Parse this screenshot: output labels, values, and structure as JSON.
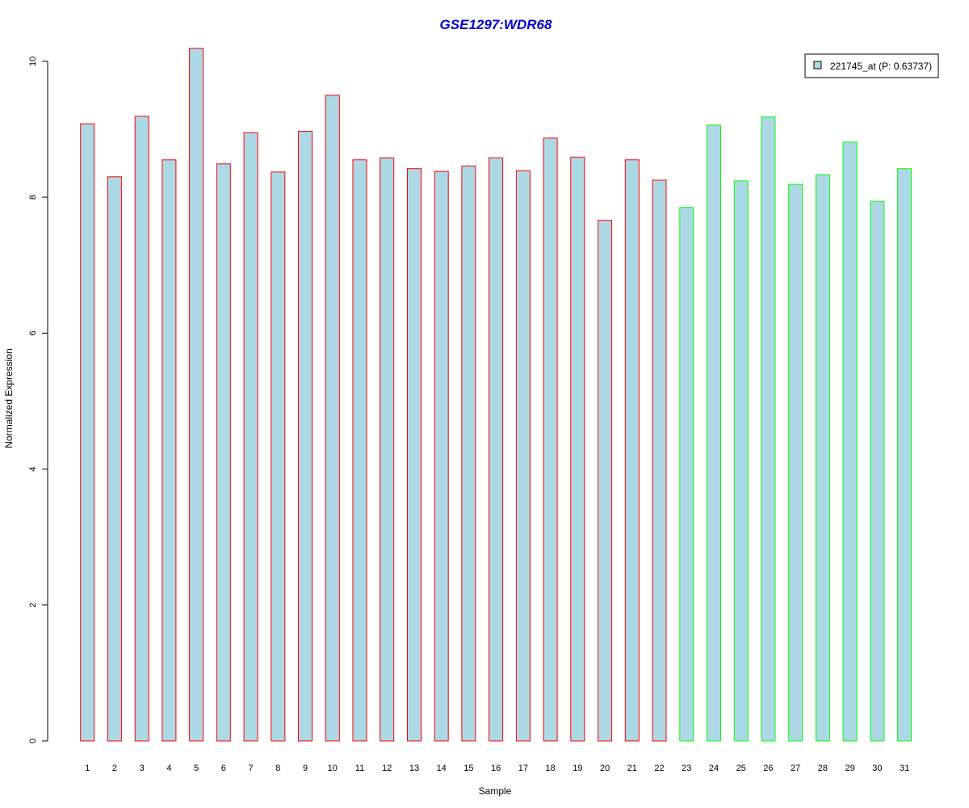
{
  "chart_data": {
    "type": "bar",
    "title": "GSE1297:WDR68",
    "xlabel": "Sample",
    "ylabel": "Normalized Expression",
    "ylim": [
      0,
      10.2
    ],
    "yticks": [
      0,
      2,
      4,
      6,
      8,
      10
    ],
    "grid": false,
    "legend_position": "top-right",
    "categories": [
      "1",
      "2",
      "3",
      "4",
      "5",
      "6",
      "7",
      "8",
      "9",
      "10",
      "11",
      "12",
      "13",
      "14",
      "15",
      "16",
      "17",
      "18",
      "19",
      "20",
      "21",
      "22",
      "23",
      "24",
      "25",
      "26",
      "27",
      "28",
      "29",
      "30",
      "31"
    ],
    "series": [
      {
        "name": "221745_at (P: 0.63737)",
        "values": [
          9.08,
          8.3,
          9.19,
          8.55,
          10.19,
          8.49,
          8.95,
          8.37,
          8.97,
          9.5,
          8.55,
          8.58,
          8.42,
          8.38,
          8.46,
          8.58,
          8.39,
          8.87,
          8.59,
          7.66,
          8.55,
          8.25,
          7.85,
          9.06,
          8.24,
          9.18,
          8.19,
          8.33,
          8.81,
          7.94,
          8.42
        ],
        "groups": [
          "red",
          "red",
          "red",
          "red",
          "red",
          "red",
          "red",
          "red",
          "red",
          "red",
          "red",
          "red",
          "red",
          "red",
          "red",
          "red",
          "red",
          "red",
          "red",
          "red",
          "red",
          "red",
          "green",
          "green",
          "green",
          "green",
          "green",
          "green",
          "green",
          "green",
          "green"
        ]
      }
    ],
    "colors": {
      "bar_fill": "#add8e6",
      "group_red": "#ff0000",
      "group_green": "#00ff00",
      "title": "#0000cd",
      "axis": "#000000"
    }
  }
}
